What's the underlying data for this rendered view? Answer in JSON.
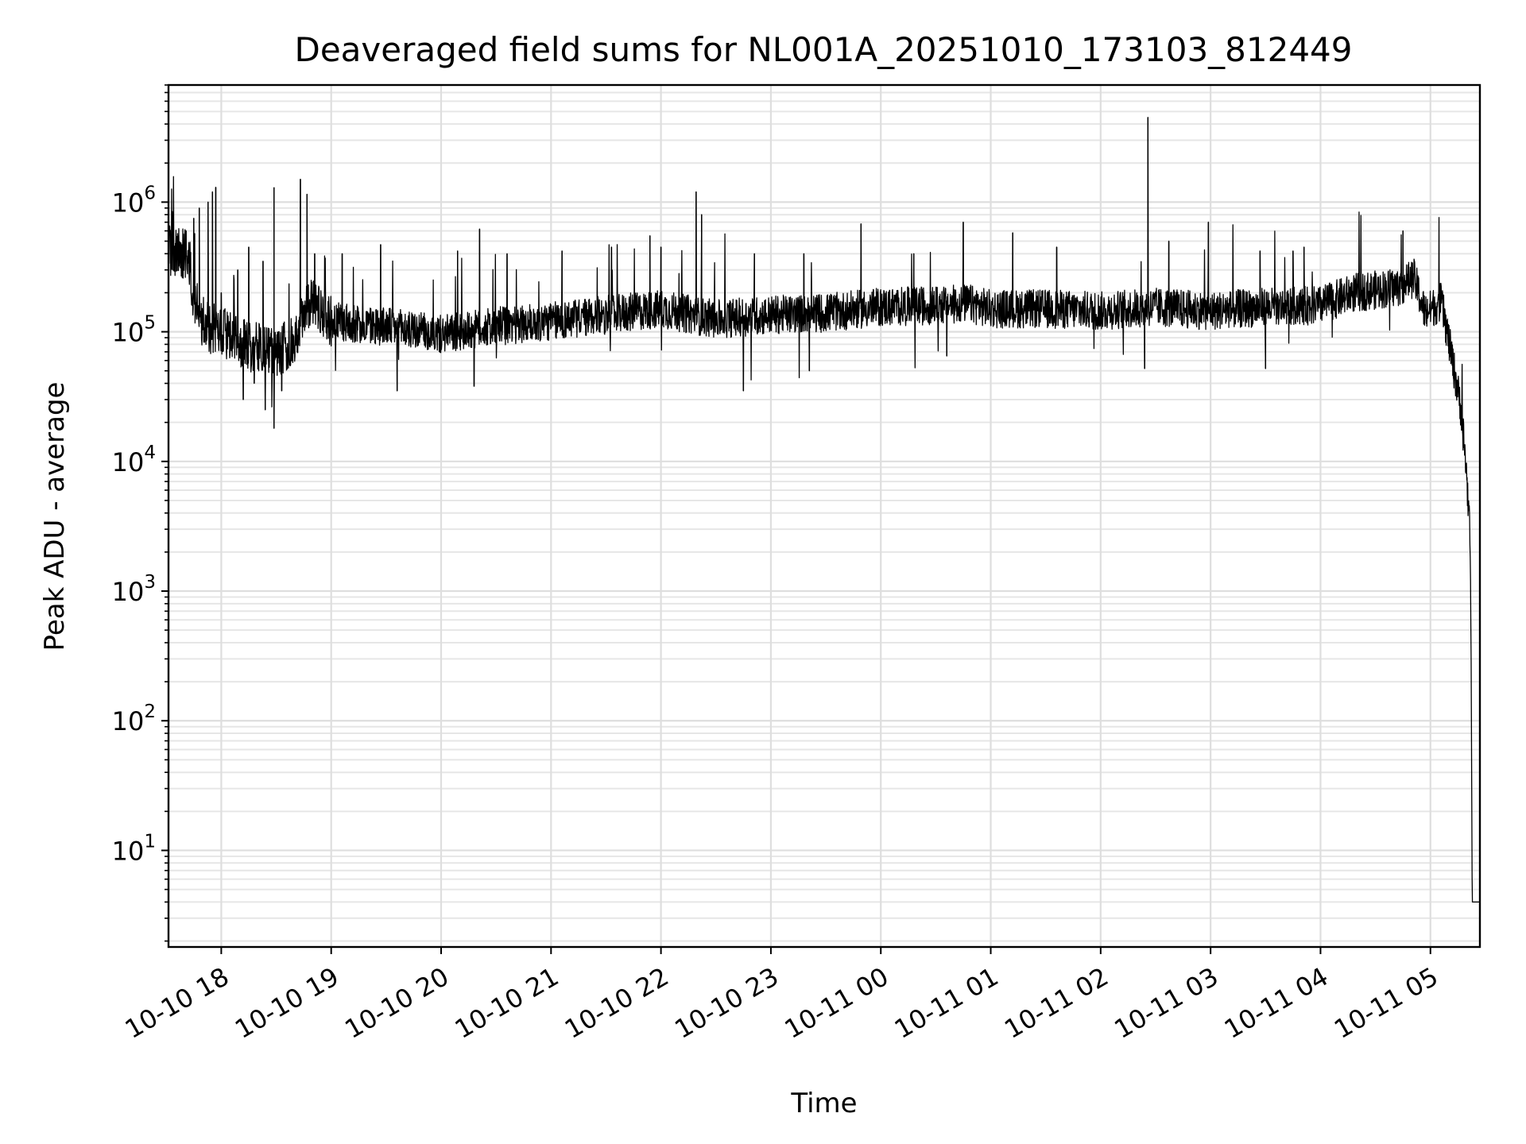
{
  "chart_data": {
    "type": "line",
    "title": "Deaveraged field sums for NL001A_20251010_173103_812449",
    "xlabel": "Time",
    "ylabel": "Peak ADU - average",
    "yscale": "log",
    "ylim": [
      1.8,
      8000000
    ],
    "xlim_hours": [
      -0.48,
      11.45
    ],
    "grid": true,
    "line_color": "#000000",
    "x_ticks": [
      {
        "label": "10-10 18",
        "hour": 0
      },
      {
        "label": "10-10 19",
        "hour": 1
      },
      {
        "label": "10-10 20",
        "hour": 2
      },
      {
        "label": "10-10 21",
        "hour": 3
      },
      {
        "label": "10-10 22",
        "hour": 4
      },
      {
        "label": "10-10 23",
        "hour": 5
      },
      {
        "label": "10-11 00",
        "hour": 6
      },
      {
        "label": "10-11 01",
        "hour": 7
      },
      {
        "label": "10-11 02",
        "hour": 8
      },
      {
        "label": "10-11 03",
        "hour": 9
      },
      {
        "label": "10-11 04",
        "hour": 10
      },
      {
        "label": "10-11 05",
        "hour": 11
      }
    ],
    "y_ticks": [
      {
        "base": "10",
        "exp": "1",
        "value": 10
      },
      {
        "base": "10",
        "exp": "2",
        "value": 100
      },
      {
        "base": "10",
        "exp": "3",
        "value": 1000
      },
      {
        "base": "10",
        "exp": "4",
        "value": 10000
      },
      {
        "base": "10",
        "exp": "5",
        "value": 100000
      },
      {
        "base": "10",
        "exp": "6",
        "value": 1000000
      }
    ],
    "series": [
      {
        "name": "Peak ADU - average",
        "baseline_points": [
          [
            -0.48,
            420000
          ],
          [
            -0.3,
            400000
          ],
          [
            -0.25,
            180000
          ],
          [
            -0.15,
            110000
          ],
          [
            0.0,
            100000
          ],
          [
            0.3,
            75000
          ],
          [
            0.5,
            70000
          ],
          [
            0.7,
            85000
          ],
          [
            0.75,
            160000
          ],
          [
            0.85,
            170000
          ],
          [
            1.0,
            120000
          ],
          [
            1.5,
            110000
          ],
          [
            2.0,
            95000
          ],
          [
            2.5,
            110000
          ],
          [
            3.0,
            120000
          ],
          [
            3.5,
            135000
          ],
          [
            4.0,
            150000
          ],
          [
            4.5,
            125000
          ],
          [
            5.0,
            135000
          ],
          [
            5.5,
            140000
          ],
          [
            6.0,
            155000
          ],
          [
            6.5,
            160000
          ],
          [
            6.8,
            165000
          ],
          [
            7.0,
            150000
          ],
          [
            7.5,
            150000
          ],
          [
            8.0,
            145000
          ],
          [
            8.5,
            155000
          ],
          [
            9.0,
            145000
          ],
          [
            9.5,
            155000
          ],
          [
            10.0,
            160000
          ],
          [
            10.3,
            200000
          ],
          [
            10.7,
            220000
          ],
          [
            10.85,
            260000
          ],
          [
            10.95,
            140000
          ],
          [
            11.1,
            170000
          ],
          [
            11.2,
            60000
          ],
          [
            11.28,
            25000
          ],
          [
            11.32,
            10000
          ],
          [
            11.36,
            3000
          ],
          [
            11.37,
            350
          ],
          [
            11.38,
            4
          ],
          [
            11.45,
            4
          ]
        ],
        "spikes": [
          [
            -0.32,
            600000
          ],
          [
            -0.25,
            750000
          ],
          [
            -0.2,
            900000
          ],
          [
            -0.12,
            1000000
          ],
          [
            -0.08,
            1200000
          ],
          [
            -0.05,
            1300000
          ],
          [
            0.0,
            200000
          ],
          [
            0.15,
            300000
          ],
          [
            0.25,
            450000
          ],
          [
            0.38,
            350000
          ],
          [
            0.48,
            1300000
          ],
          [
            0.72,
            1500000
          ],
          [
            0.78,
            1150000
          ],
          [
            0.85,
            400000
          ],
          [
            1.1,
            400000
          ],
          [
            1.45,
            470000
          ],
          [
            2.15,
            420000
          ],
          [
            2.35,
            620000
          ],
          [
            2.6,
            400000
          ],
          [
            3.1,
            420000
          ],
          [
            3.55,
            450000
          ],
          [
            3.9,
            550000
          ],
          [
            4.0,
            450000
          ],
          [
            4.32,
            1200000
          ],
          [
            4.37,
            800000
          ],
          [
            4.85,
            400000
          ],
          [
            5.3,
            400000
          ],
          [
            5.82,
            680000
          ],
          [
            6.3,
            400000
          ],
          [
            6.75,
            700000
          ],
          [
            7.2,
            580000
          ],
          [
            7.6,
            450000
          ],
          [
            8.43,
            4500000
          ],
          [
            8.62,
            500000
          ],
          [
            8.98,
            700000
          ],
          [
            9.45,
            420000
          ],
          [
            9.75,
            420000
          ],
          [
            9.85,
            450000
          ],
          [
            10.75,
            600000
          ]
        ],
        "dips": [
          [
            0.3,
            40000
          ],
          [
            0.4,
            25000
          ],
          [
            0.48,
            18000
          ],
          [
            0.55,
            35000
          ],
          [
            0.2,
            30000
          ],
          [
            1.6,
            35000
          ],
          [
            2.3,
            38000
          ],
          [
            4.75,
            35000
          ],
          [
            5.35,
            50000
          ],
          [
            6.6,
            65000
          ],
          [
            8.4,
            52000
          ],
          [
            9.5,
            52000
          ]
        ]
      }
    ]
  }
}
